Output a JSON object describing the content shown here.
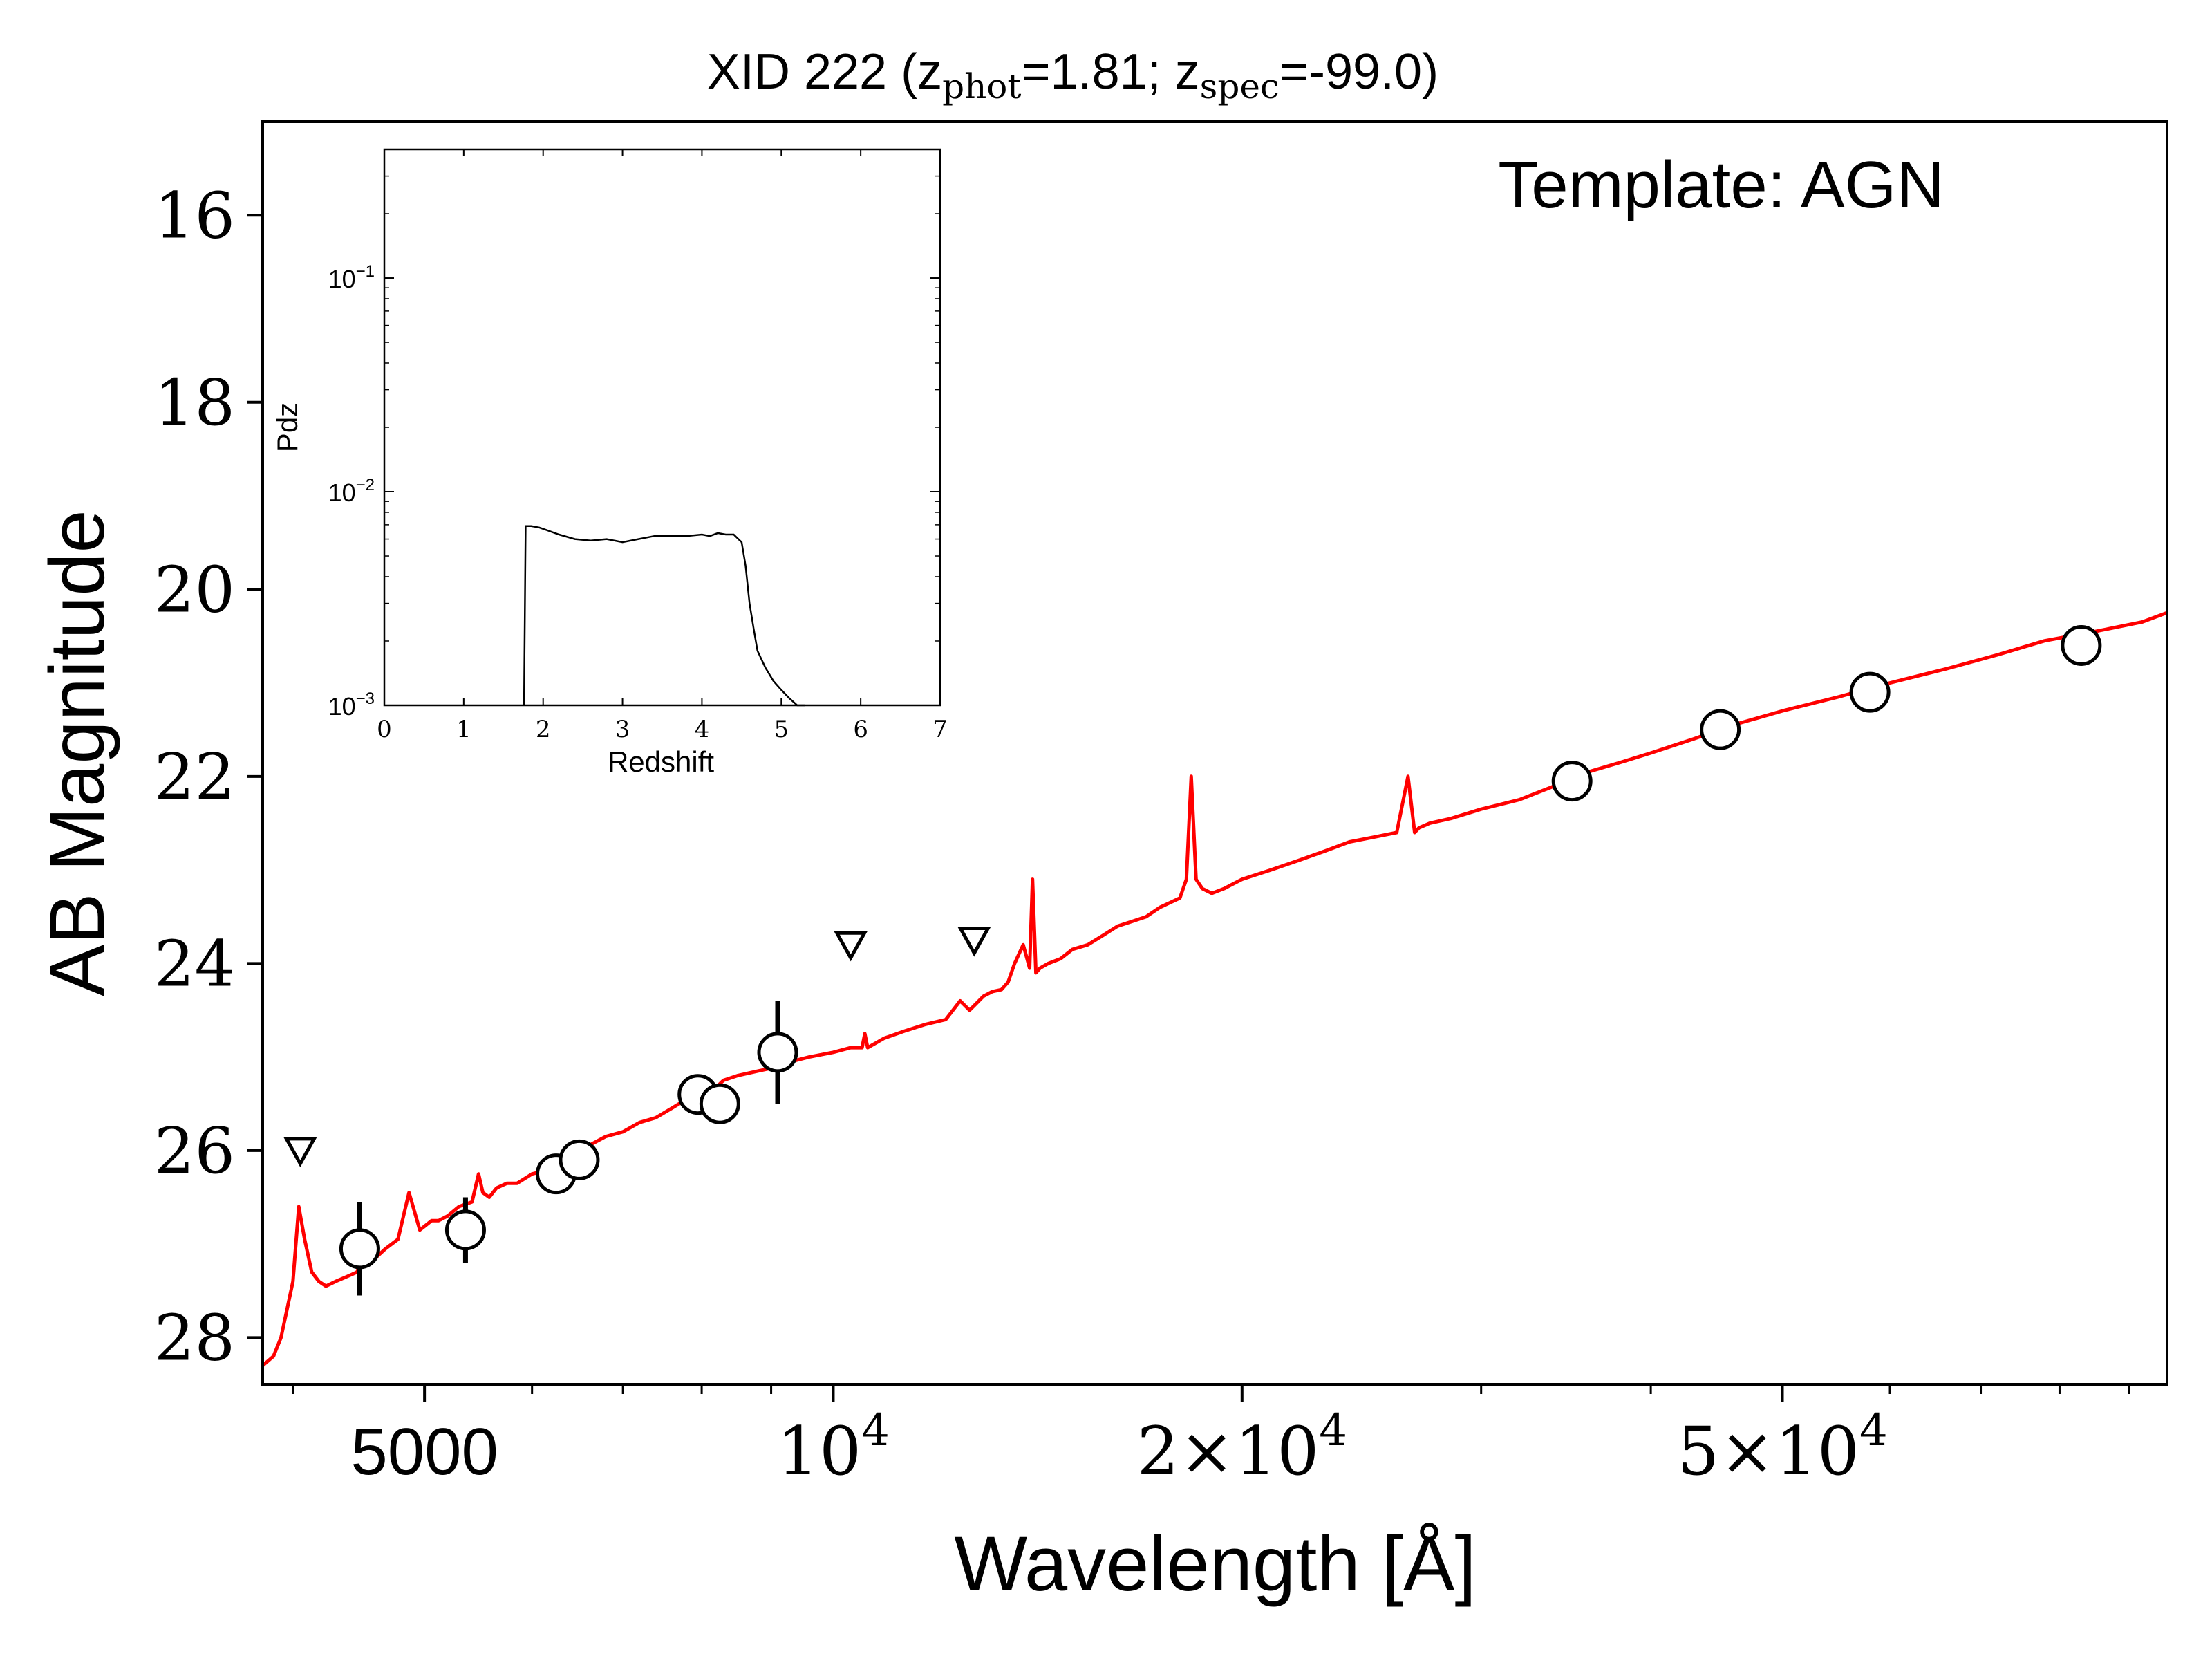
{
  "chart_data": {
    "type": "scatter",
    "title": "XID 222 (z_phot=1.81; z_spec=-99.0)",
    "title_parts": {
      "prefix": "XID 222 (",
      "z1": "z",
      "sub1": "phot",
      "val1": "=1.81; ",
      "z2": "z",
      "sub2": "spec",
      "val2": "=-99.0)"
    },
    "annotation": "Template: AGN",
    "xlabel": "Wavelength [Å]",
    "ylabel": "AB Magnitude",
    "x_scale": "log",
    "xlim": [
      3800,
      96000
    ],
    "ylim": [
      28.5,
      15.0
    ],
    "x_ticks": [
      {
        "value": 5000,
        "label": "5000"
      },
      {
        "value": 10000,
        "base": "10",
        "exp": "4"
      },
      {
        "value": 20000,
        "mant": "2×10",
        "exp": "4"
      },
      {
        "value": 50000,
        "mant": "5×10",
        "exp": "4"
      }
    ],
    "y_ticks": [
      {
        "value": 16,
        "label": "16"
      },
      {
        "value": 18,
        "label": "18"
      },
      {
        "value": 20,
        "label": "20"
      },
      {
        "value": 22,
        "label": "22"
      },
      {
        "value": 24,
        "label": "24"
      },
      {
        "value": 26,
        "label": "26"
      },
      {
        "value": 28,
        "label": "28"
      }
    ],
    "series": [
      {
        "type": "line",
        "color": "#ff0000",
        "x": [
          3800,
          3870,
          3920,
          3960,
          4000,
          4040,
          4080,
          4130,
          4180,
          4230,
          4300,
          4380,
          4460,
          4500,
          4540,
          4600,
          4680,
          4780,
          4870,
          4960,
          5010,
          5060,
          5120,
          5200,
          5300,
          5420,
          5480,
          5520,
          5580,
          5650,
          5750,
          5850,
          6000,
          6200,
          6400,
          6600,
          6800,
          7000,
          7200,
          7400,
          7600,
          7800,
          7900,
          8000,
          8100,
          8300,
          8500,
          8800,
          9000,
          9300,
          9600,
          10000,
          10300,
          10500,
          10550,
          10600,
          10900,
          11300,
          11700,
          12100,
          12400,
          12600,
          12700,
          12900,
          13100,
          13300,
          13450,
          13600,
          13800,
          13950,
          14020,
          14100,
          14200,
          14400,
          14700,
          15000,
          15400,
          15800,
          16200,
          16600,
          17000,
          17400,
          17700,
          18000,
          18200,
          18350,
          18500,
          18700,
          19000,
          19400,
          20000,
          21000,
          22000,
          23000,
          24000,
          25000,
          26000,
          26500,
          26800,
          27000,
          27500,
          28500,
          30000,
          32000,
          34000,
          36000,
          38000,
          40000,
          43000,
          46000,
          50000,
          55000,
          60000,
          66000,
          72000,
          78000,
          85000,
          92000,
          96000
        ],
        "y": [
          28.3,
          28.2,
          28.0,
          27.7,
          27.4,
          26.6,
          26.95,
          27.3,
          27.4,
          27.45,
          27.4,
          27.35,
          27.3,
          27.1,
          27.2,
          27.15,
          27.05,
          26.95,
          26.45,
          26.85,
          26.8,
          26.75,
          26.75,
          26.7,
          26.6,
          26.55,
          26.25,
          26.45,
          26.5,
          26.4,
          26.35,
          26.35,
          26.25,
          26.2,
          26.05,
          25.95,
          25.85,
          25.8,
          25.7,
          25.65,
          25.55,
          25.45,
          25.25,
          25.35,
          25.4,
          25.25,
          25.2,
          25.15,
          25.12,
          25.05,
          25.0,
          24.95,
          24.9,
          24.9,
          24.75,
          24.9,
          24.8,
          24.72,
          24.65,
          24.6,
          24.4,
          24.5,
          24.45,
          24.35,
          24.3,
          24.28,
          24.2,
          24.0,
          23.8,
          24.05,
          23.1,
          24.1,
          24.05,
          24.0,
          23.95,
          23.85,
          23.8,
          23.7,
          23.6,
          23.55,
          23.5,
          23.4,
          23.35,
          23.3,
          23.1,
          22.0,
          23.1,
          23.2,
          23.25,
          23.2,
          23.1,
          23.0,
          22.9,
          22.8,
          22.7,
          22.65,
          22.6,
          22.0,
          22.6,
          22.55,
          22.5,
          22.45,
          22.35,
          22.25,
          22.1,
          21.95,
          21.85,
          21.75,
          21.6,
          21.45,
          21.3,
          21.15,
          21.0,
          20.85,
          20.7,
          20.55,
          20.45,
          20.35,
          20.25
        ]
      },
      {
        "type": "scatter",
        "marker": "open-circle",
        "x": [
          4480,
          5360,
          6250,
          6500,
          7950,
          8250,
          9100,
          35000,
          45000,
          58000,
          83000
        ],
        "y": [
          27.05,
          26.85,
          26.25,
          26.1,
          25.4,
          25.5,
          24.95,
          22.05,
          21.5,
          21.1,
          20.6
        ],
        "yerr": [
          0.5,
          0.35,
          0.0,
          0.0,
          0.0,
          0.0,
          0.55,
          0.0,
          0.0,
          0.0,
          0.0
        ]
      },
      {
        "type": "scatter",
        "marker": "open-triangle-down",
        "x": [
          4050,
          10300,
          12700
        ],
        "y": [
          26.0,
          23.8,
          23.75
        ]
      }
    ],
    "inset": {
      "type": "line",
      "xlabel": "Redshift",
      "ylabel": "Pdz",
      "x_scale": "linear",
      "y_scale": "log",
      "xlim": [
        0,
        7
      ],
      "ylim": [
        0.001,
        0.4
      ],
      "x_ticks": [
        "0",
        "1",
        "2",
        "3",
        "4",
        "5",
        "6",
        "7"
      ],
      "y_ticks": [
        {
          "value": 0.1,
          "base": "10",
          "exp": "−1"
        },
        {
          "value": 0.01,
          "base": "10",
          "exp": "−2"
        },
        {
          "value": 0.001,
          "base": "10",
          "exp": "−3"
        }
      ],
      "x": [
        1.76,
        1.78,
        1.85,
        1.95,
        2.05,
        2.2,
        2.4,
        2.6,
        2.8,
        3.0,
        3.2,
        3.4,
        3.6,
        3.8,
        4.0,
        4.1,
        4.2,
        4.3,
        4.4,
        4.5,
        4.55,
        4.6,
        4.65,
        4.7,
        4.8,
        4.9,
        5.0,
        5.1,
        5.2,
        5.3
      ],
      "y": [
        0.001,
        0.0069,
        0.0069,
        0.0068,
        0.0066,
        0.0063,
        0.006,
        0.0059,
        0.006,
        0.0058,
        0.006,
        0.0062,
        0.0062,
        0.0062,
        0.0063,
        0.0062,
        0.0064,
        0.0063,
        0.0063,
        0.0058,
        0.0045,
        0.003,
        0.0023,
        0.0018,
        0.0015,
        0.0013,
        0.00118,
        0.00108,
        0.001,
        0.00095
      ]
    }
  }
}
